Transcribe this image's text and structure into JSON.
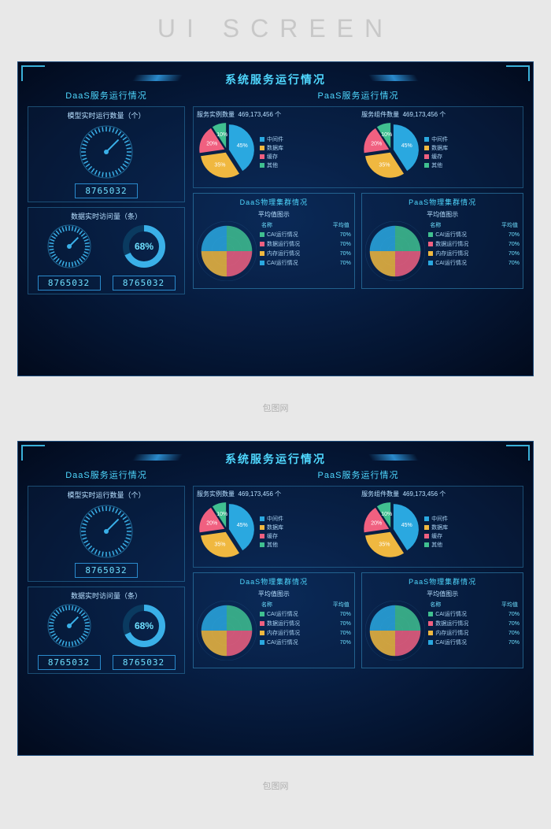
{
  "page_watermark": "UI SCREEN",
  "main_title": "系统服务运行情况",
  "colors": {
    "bg_outer": "#e8e8e8",
    "dash_bg": "#041430",
    "accent": "#4fd8ff",
    "border": "#2a8acc",
    "text_light": "#b8e0ff"
  },
  "left": {
    "title": "DaaS服务运行情况",
    "top_box": {
      "label": "模型实时运行数量（个）",
      "gauge": {
        "radius": 34,
        "ticks": 40,
        "color": "#3ab0e8"
      },
      "value": "8765032"
    },
    "bottom_box": {
      "label": "数据实时访问量（条）",
      "gauge_value": "8765032",
      "ring_pct": 68,
      "ring_value": "8765032",
      "ring_color": "#3ab0e8",
      "ring_bg": "#0a3a60"
    }
  },
  "right": {
    "title": "PaaS服务运行情况",
    "pies": [
      {
        "head_label": "服务实例数量",
        "head_value": "469,173,456 个",
        "slices": [
          {
            "label": "中间件",
            "pct": 45,
            "color": "#2aa8e0"
          },
          {
            "label": "数据库",
            "pct": 35,
            "color": "#f0b840"
          },
          {
            "label": "缓存",
            "pct": 20,
            "color": "#f06080"
          },
          {
            "label": "其他",
            "pct": 10,
            "color": "#40c090"
          }
        ],
        "inner_labels": [
          "10%",
          "20%",
          "35%",
          "45%"
        ]
      },
      {
        "head_label": "服务组件数量",
        "head_value": "469,173,456 个",
        "slices": [
          {
            "label": "中间件",
            "pct": 45,
            "color": "#2aa8e0"
          },
          {
            "label": "数据库",
            "pct": 35,
            "color": "#f0b840"
          },
          {
            "label": "缓存",
            "pct": 20,
            "color": "#f06080"
          },
          {
            "label": "其他",
            "pct": 10,
            "color": "#40c090"
          }
        ],
        "inner_labels": [
          "10%",
          "20%",
          "35%",
          "45%"
        ]
      }
    ],
    "clusters": [
      {
        "title": "DaaS物理集群情况",
        "avg_label": "平均值图示",
        "th_name": "名称",
        "th_avg": "平均值",
        "rows": [
          {
            "label": "CAI运行情况",
            "pct": "70%",
            "color": "#40c090"
          },
          {
            "label": "数据运行情况",
            "pct": "70%",
            "color": "#f06080"
          },
          {
            "label": "内存运行情况",
            "pct": "70%",
            "color": "#f0b840"
          },
          {
            "label": "CAI运行情况",
            "pct": "70%",
            "color": "#2aa8e0"
          }
        ]
      },
      {
        "title": "PaaS物理集群情况",
        "avg_label": "平均值图示",
        "th_name": "名称",
        "th_avg": "平均值",
        "rows": [
          {
            "label": "CAI运行情况",
            "pct": "70%",
            "color": "#40c090"
          },
          {
            "label": "数据运行情况",
            "pct": "70%",
            "color": "#f06080"
          },
          {
            "label": "内存运行情况",
            "pct": "70%",
            "color": "#f0b840"
          },
          {
            "label": "CAI运行情况",
            "pct": "70%",
            "color": "#2aa8e0"
          }
        ]
      }
    ]
  },
  "logo_text": "包图网"
}
